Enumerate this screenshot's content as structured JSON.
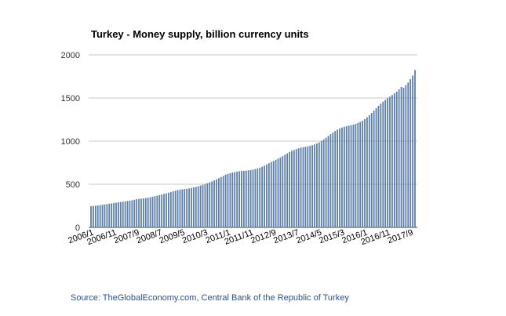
{
  "chart_data": {
    "type": "bar",
    "title": "Turkey - Money supply, billion currency units",
    "source": "Source: TheGlobalEconomy.com, Central Bank of the Republic of Turkey",
    "ylim": [
      0,
      2000
    ],
    "yticks": [
      0,
      500,
      1000,
      1500,
      2000
    ],
    "grid": true,
    "start": "2006/1",
    "xtick_labels": [
      "2006/1",
      "2006/11",
      "2007/9",
      "2008/7",
      "2009/5",
      "2010/3",
      "2011/1",
      "2011/11",
      "2012/9",
      "2013/7",
      "2014/5",
      "2015/3",
      "2016/1",
      "2016/11",
      "2017/9"
    ],
    "values": [
      245,
      249,
      252,
      255,
      258,
      262,
      266,
      270,
      274,
      278,
      282,
      286,
      290,
      294,
      298,
      302,
      306,
      310,
      315,
      320,
      326,
      330,
      333,
      336,
      340,
      345,
      350,
      355,
      362,
      368,
      375,
      381,
      388,
      395,
      402,
      410,
      418,
      425,
      432,
      437,
      441,
      444,
      448,
      452,
      458,
      464,
      470,
      477,
      485,
      493,
      502,
      512,
      522,
      533,
      545,
      557,
      570,
      583,
      597,
      611,
      620,
      628,
      636,
      642,
      647,
      651,
      654,
      656,
      658,
      661,
      665,
      670,
      676,
      683,
      692,
      703,
      716,
      730,
      744,
      758,
      771,
      784,
      797,
      811,
      826,
      842,
      858,
      873,
      887,
      898,
      908,
      917,
      924,
      930,
      935,
      940,
      946,
      953,
      962,
      973,
      986,
      1002,
      1020,
      1040,
      1060,
      1080,
      1099,
      1117,
      1133,
      1147,
      1158,
      1167,
      1174,
      1180,
      1186,
      1192,
      1200,
      1210,
      1222,
      1237,
      1255,
      1276,
      1300,
      1326,
      1354,
      1382,
      1409,
      1434,
      1457,
      1478,
      1498,
      1516,
      1534,
      1553,
      1575,
      1600,
      1628,
      1620,
      1650,
      1680,
      1720,
      1760,
      1825
    ],
    "series_color": "#5b7fa8"
  }
}
